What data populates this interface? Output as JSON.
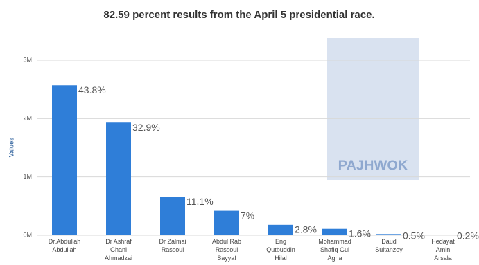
{
  "chart_data": {
    "type": "bar",
    "title": "82.59 percent results from the April 5 presidential race.",
    "y_label": "Values",
    "watermark": "PAJHWOK",
    "categories": [
      [
        "Dr.Abdullah",
        "Abdullah"
      ],
      [
        "Dr Ashraf",
        "Ghani",
        "Ahmadzai"
      ],
      [
        "Dr Zalmai",
        "Rassoul"
      ],
      [
        "Abdul Rab",
        "Rassoul",
        "Sayyaf"
      ],
      [
        "Eng",
        "Qutbuddin",
        "Hilal"
      ],
      [
        "Mohammad",
        "Shafiq Gul",
        "Agha"
      ],
      [
        "Daud",
        "Sultanzoy"
      ],
      [
        "Hedayat",
        "Amin",
        "Arsala"
      ]
    ],
    "values": [
      2.57,
      1.93,
      0.66,
      0.42,
      0.18,
      0.11,
      0.02,
      0.005
    ],
    "annotations": [
      "43.8%",
      "32.9%",
      "11.1%",
      "7%",
      "2.8%",
      "1.6%",
      "0.5%",
      "0.2%"
    ],
    "color": "#2f7ed8",
    "ylim": [
      0,
      3
    ],
    "yticks": [
      {
        "value": 0,
        "label": "0M"
      },
      {
        "value": 1,
        "label": "1M"
      },
      {
        "value": 2,
        "label": "2M"
      },
      {
        "value": 3,
        "label": "3M"
      }
    ],
    "grid": true
  }
}
